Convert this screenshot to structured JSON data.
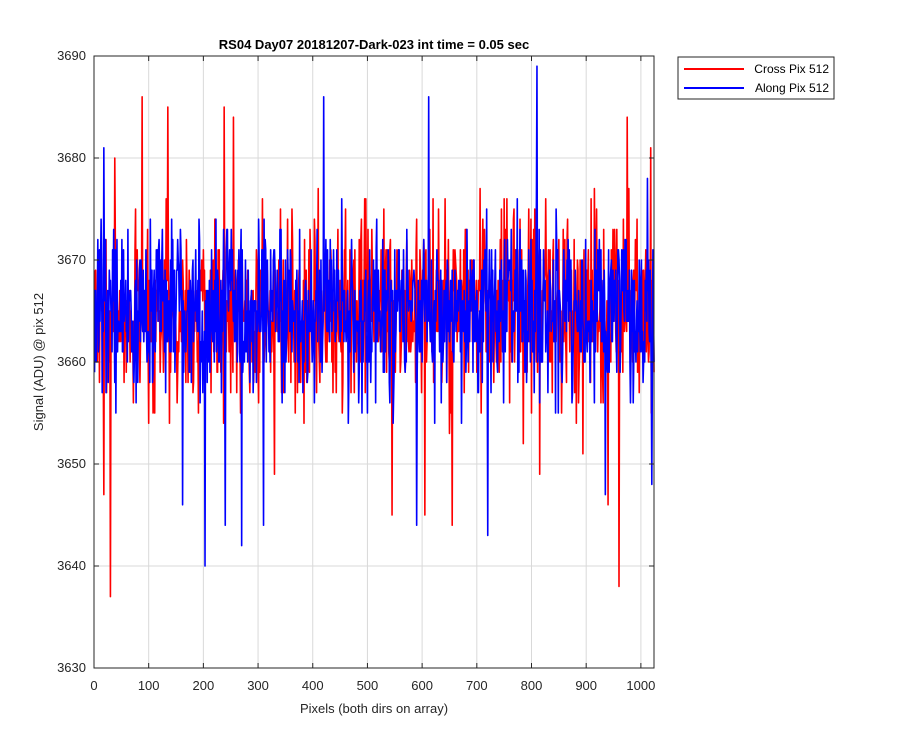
{
  "chart_data": {
    "type": "line",
    "title": "RS04 Day07 20181207-Dark-023 int time = 0.05 sec",
    "xlabel": "Pixels (both dirs on array)",
    "ylabel": "Signal (ADU) @ pix 512",
    "xlim": [
      0,
      1024
    ],
    "ylim": [
      3630,
      3690
    ],
    "xticks": [
      0,
      100,
      200,
      300,
      400,
      500,
      600,
      700,
      800,
      900,
      1000
    ],
    "yticks": [
      3630,
      3640,
      3650,
      3660,
      3670,
      3680,
      3690
    ],
    "grid": true,
    "legend_position": "outside top-right",
    "series": [
      {
        "name": "Cross Pix 512",
        "color": "#ff0000",
        "seed": 7,
        "x_start": 1,
        "x_end": 1024,
        "mean": 3665,
        "spread": 4.5,
        "extremes": [
          [
            18,
            3647
          ],
          [
            30,
            3637
          ],
          [
            38,
            3680
          ],
          [
            88,
            3686
          ],
          [
            135,
            3685
          ],
          [
            238,
            3685
          ],
          [
            255,
            3684
          ],
          [
            330,
            3649
          ],
          [
            545,
            3645
          ],
          [
            605,
            3645
          ],
          [
            655,
            3644
          ],
          [
            815,
            3649
          ],
          [
            940,
            3646
          ],
          [
            960,
            3638
          ],
          [
            975,
            3684
          ],
          [
            1018,
            3681
          ]
        ]
      },
      {
        "name": "Along Pix 512",
        "color": "#0000ff",
        "seed": 13,
        "x_start": 1,
        "x_end": 1024,
        "mean": 3665,
        "spread": 4.2,
        "extremes": [
          [
            18,
            3681
          ],
          [
            162,
            3646
          ],
          [
            203,
            3640
          ],
          [
            240,
            3644
          ],
          [
            270,
            3642
          ],
          [
            310,
            3644
          ],
          [
            420,
            3686
          ],
          [
            590,
            3644
          ],
          [
            612,
            3686
          ],
          [
            720,
            3643
          ],
          [
            810,
            3689
          ],
          [
            935,
            3647
          ],
          [
            1020,
            3648
          ]
        ]
      }
    ]
  }
}
